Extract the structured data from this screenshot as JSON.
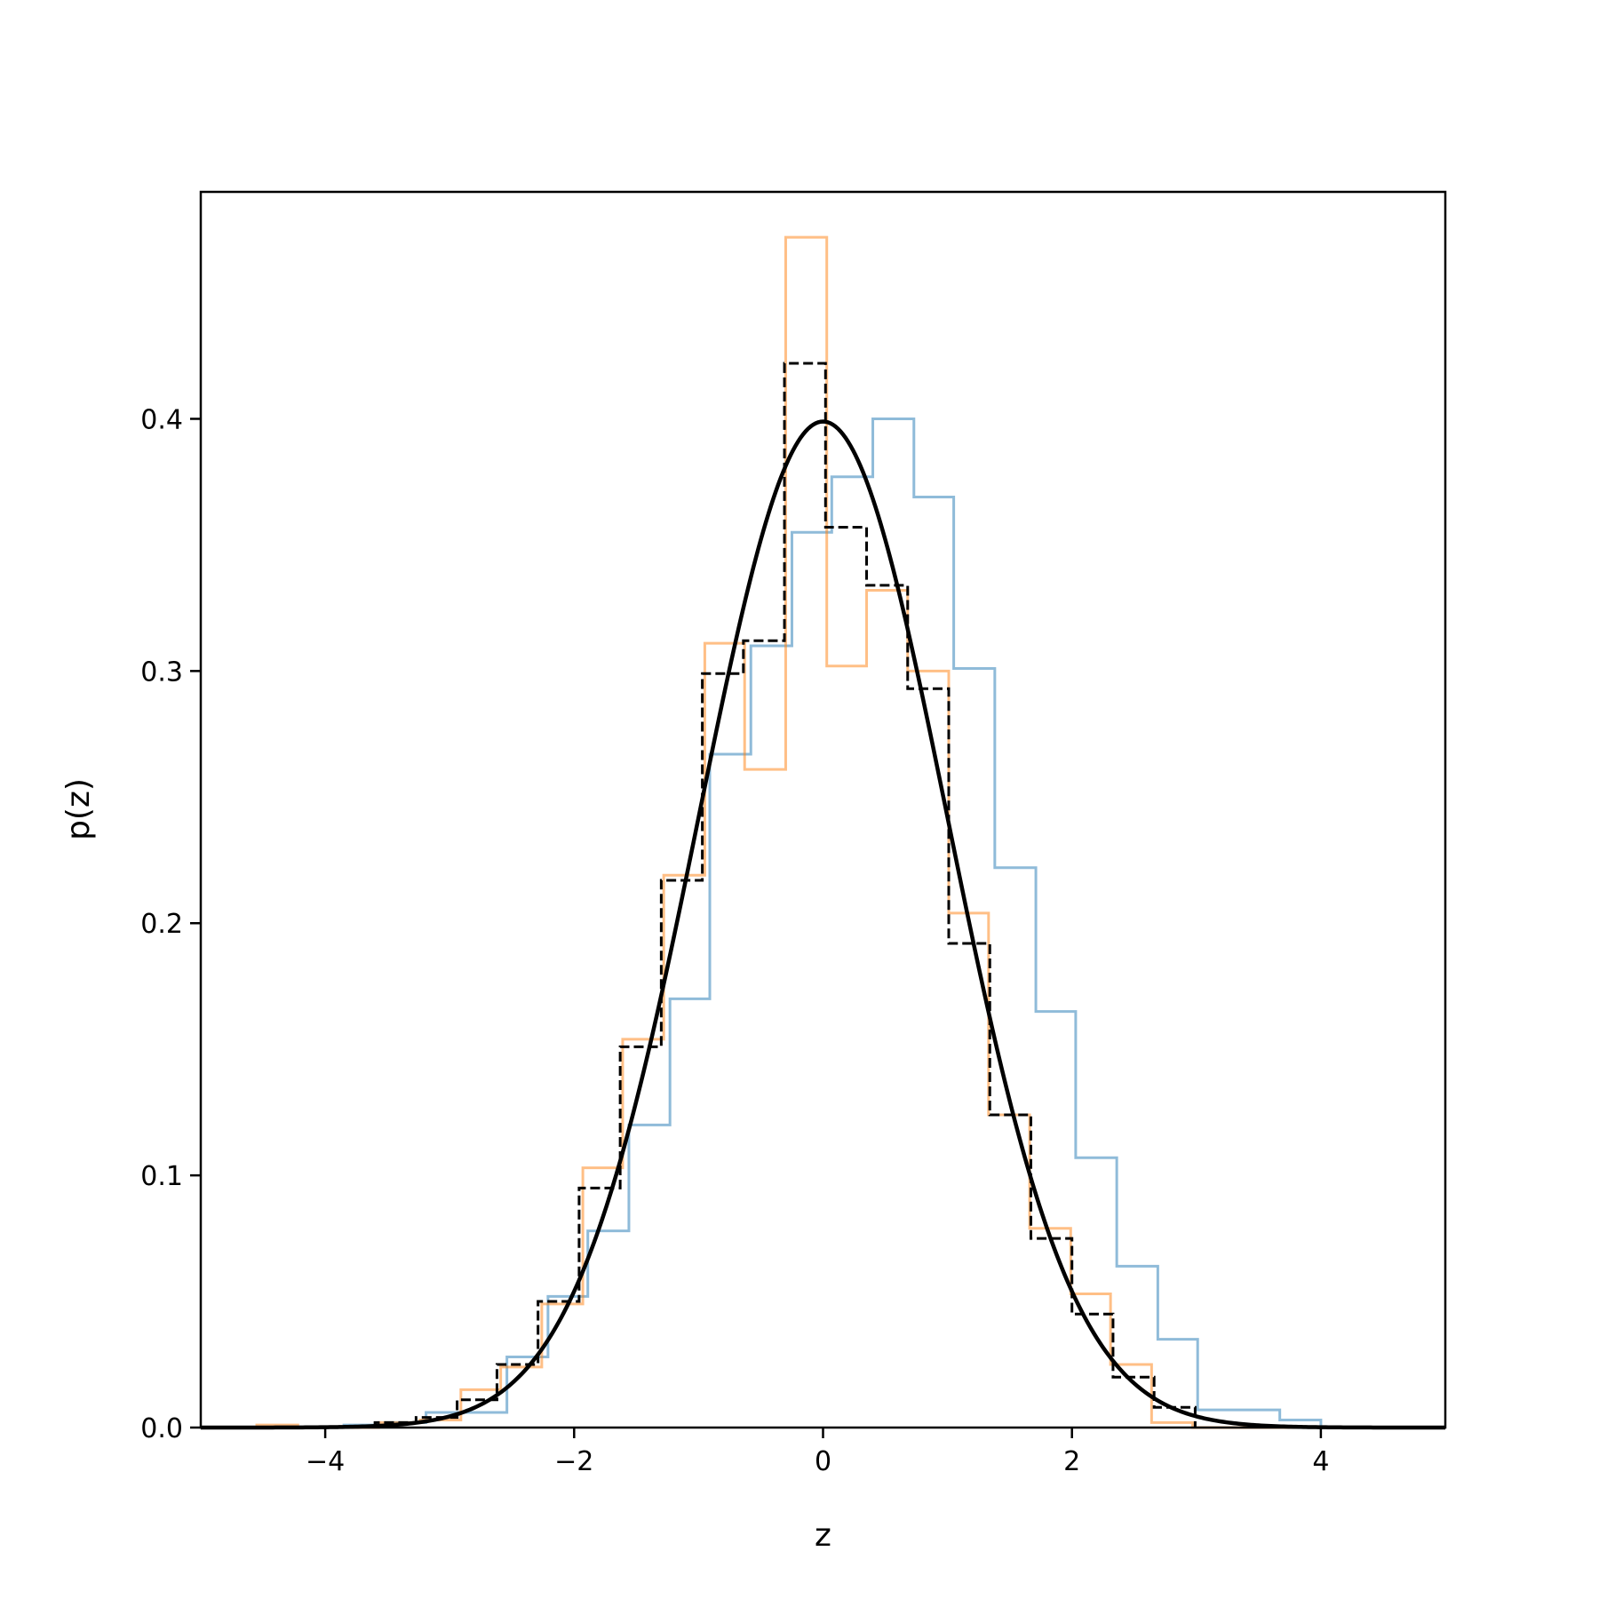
{
  "chart_data": {
    "type": "histogram",
    "xlabel": "z",
    "ylabel": "p(z)",
    "xlim": [
      -5,
      5
    ],
    "ylim": [
      0,
      0.49
    ],
    "x_ticks": [
      -4,
      -2,
      0,
      2,
      4
    ],
    "x_tick_labels": [
      "−4",
      "−2",
      "0",
      "2",
      "4"
    ],
    "y_ticks": [
      0.0,
      0.1,
      0.2,
      0.3,
      0.4
    ],
    "y_tick_labels": [
      "0.0",
      "0.1",
      "0.2",
      "0.3",
      "0.4"
    ],
    "grid": false,
    "legend": "none",
    "series": [
      {
        "style": "step",
        "color": "#1f77b4",
        "opacity": 0.5,
        "edges": [
          -4.5,
          -4.17,
          -3.85,
          -3.52,
          -3.19,
          -2.87,
          -2.54,
          -2.21,
          -1.89,
          -1.56,
          -1.23,
          -0.91,
          -0.58,
          -0.25,
          0.07,
          0.4,
          0.73,
          1.05,
          1.38,
          1.71,
          2.03,
          2.36,
          2.69,
          3.01,
          3.34,
          3.67,
          4.0
        ],
        "values": [
          0.0,
          0.0,
          0.001,
          0.002,
          0.006,
          0.006,
          0.028,
          0.052,
          0.078,
          0.12,
          0.17,
          0.267,
          0.31,
          0.355,
          0.377,
          0.4,
          0.369,
          0.301,
          0.222,
          0.165,
          0.107,
          0.064,
          0.035,
          0.007,
          0.007,
          0.003
        ]
      },
      {
        "style": "step",
        "color": "#ff7f0e",
        "opacity": 0.5,
        "edges": [
          -4.55,
          -4.22,
          -3.89,
          -3.57,
          -3.24,
          -2.91,
          -2.59,
          -2.26,
          -1.93,
          -1.61,
          -1.28,
          -0.95,
          -0.63,
          -0.3,
          0.03,
          0.35,
          0.68,
          1.01,
          1.33,
          1.66,
          1.99,
          2.31,
          2.64,
          2.97,
          3.29,
          3.62,
          3.95
        ],
        "values": [
          0.001,
          0.0,
          0.0,
          0.002,
          0.003,
          0.015,
          0.024,
          0.049,
          0.103,
          0.154,
          0.219,
          0.311,
          0.261,
          0.472,
          0.302,
          0.332,
          0.3,
          0.204,
          0.124,
          0.079,
          0.053,
          0.025,
          0.002,
          0.0,
          0.0,
          0.0
        ]
      },
      {
        "style": "step-dashed",
        "color": "#000000",
        "opacity": 1,
        "edges": [
          -3.6,
          -3.27,
          -2.94,
          -2.62,
          -2.29,
          -1.96,
          -1.63,
          -1.3,
          -0.97,
          -0.64,
          -0.31,
          0.02,
          0.35,
          0.68,
          1.01,
          1.34,
          1.67,
          2.0,
          2.33,
          2.66,
          2.99
        ],
        "values": [
          0.002,
          0.004,
          0.011,
          0.025,
          0.05,
          0.095,
          0.151,
          0.217,
          0.299,
          0.312,
          0.422,
          0.357,
          0.334,
          0.293,
          0.192,
          0.124,
          0.075,
          0.045,
          0.02,
          0.008
        ]
      },
      {
        "style": "line",
        "color": "#000000",
        "function": "standard normal density",
        "mean": 0,
        "std": 1
      }
    ]
  }
}
